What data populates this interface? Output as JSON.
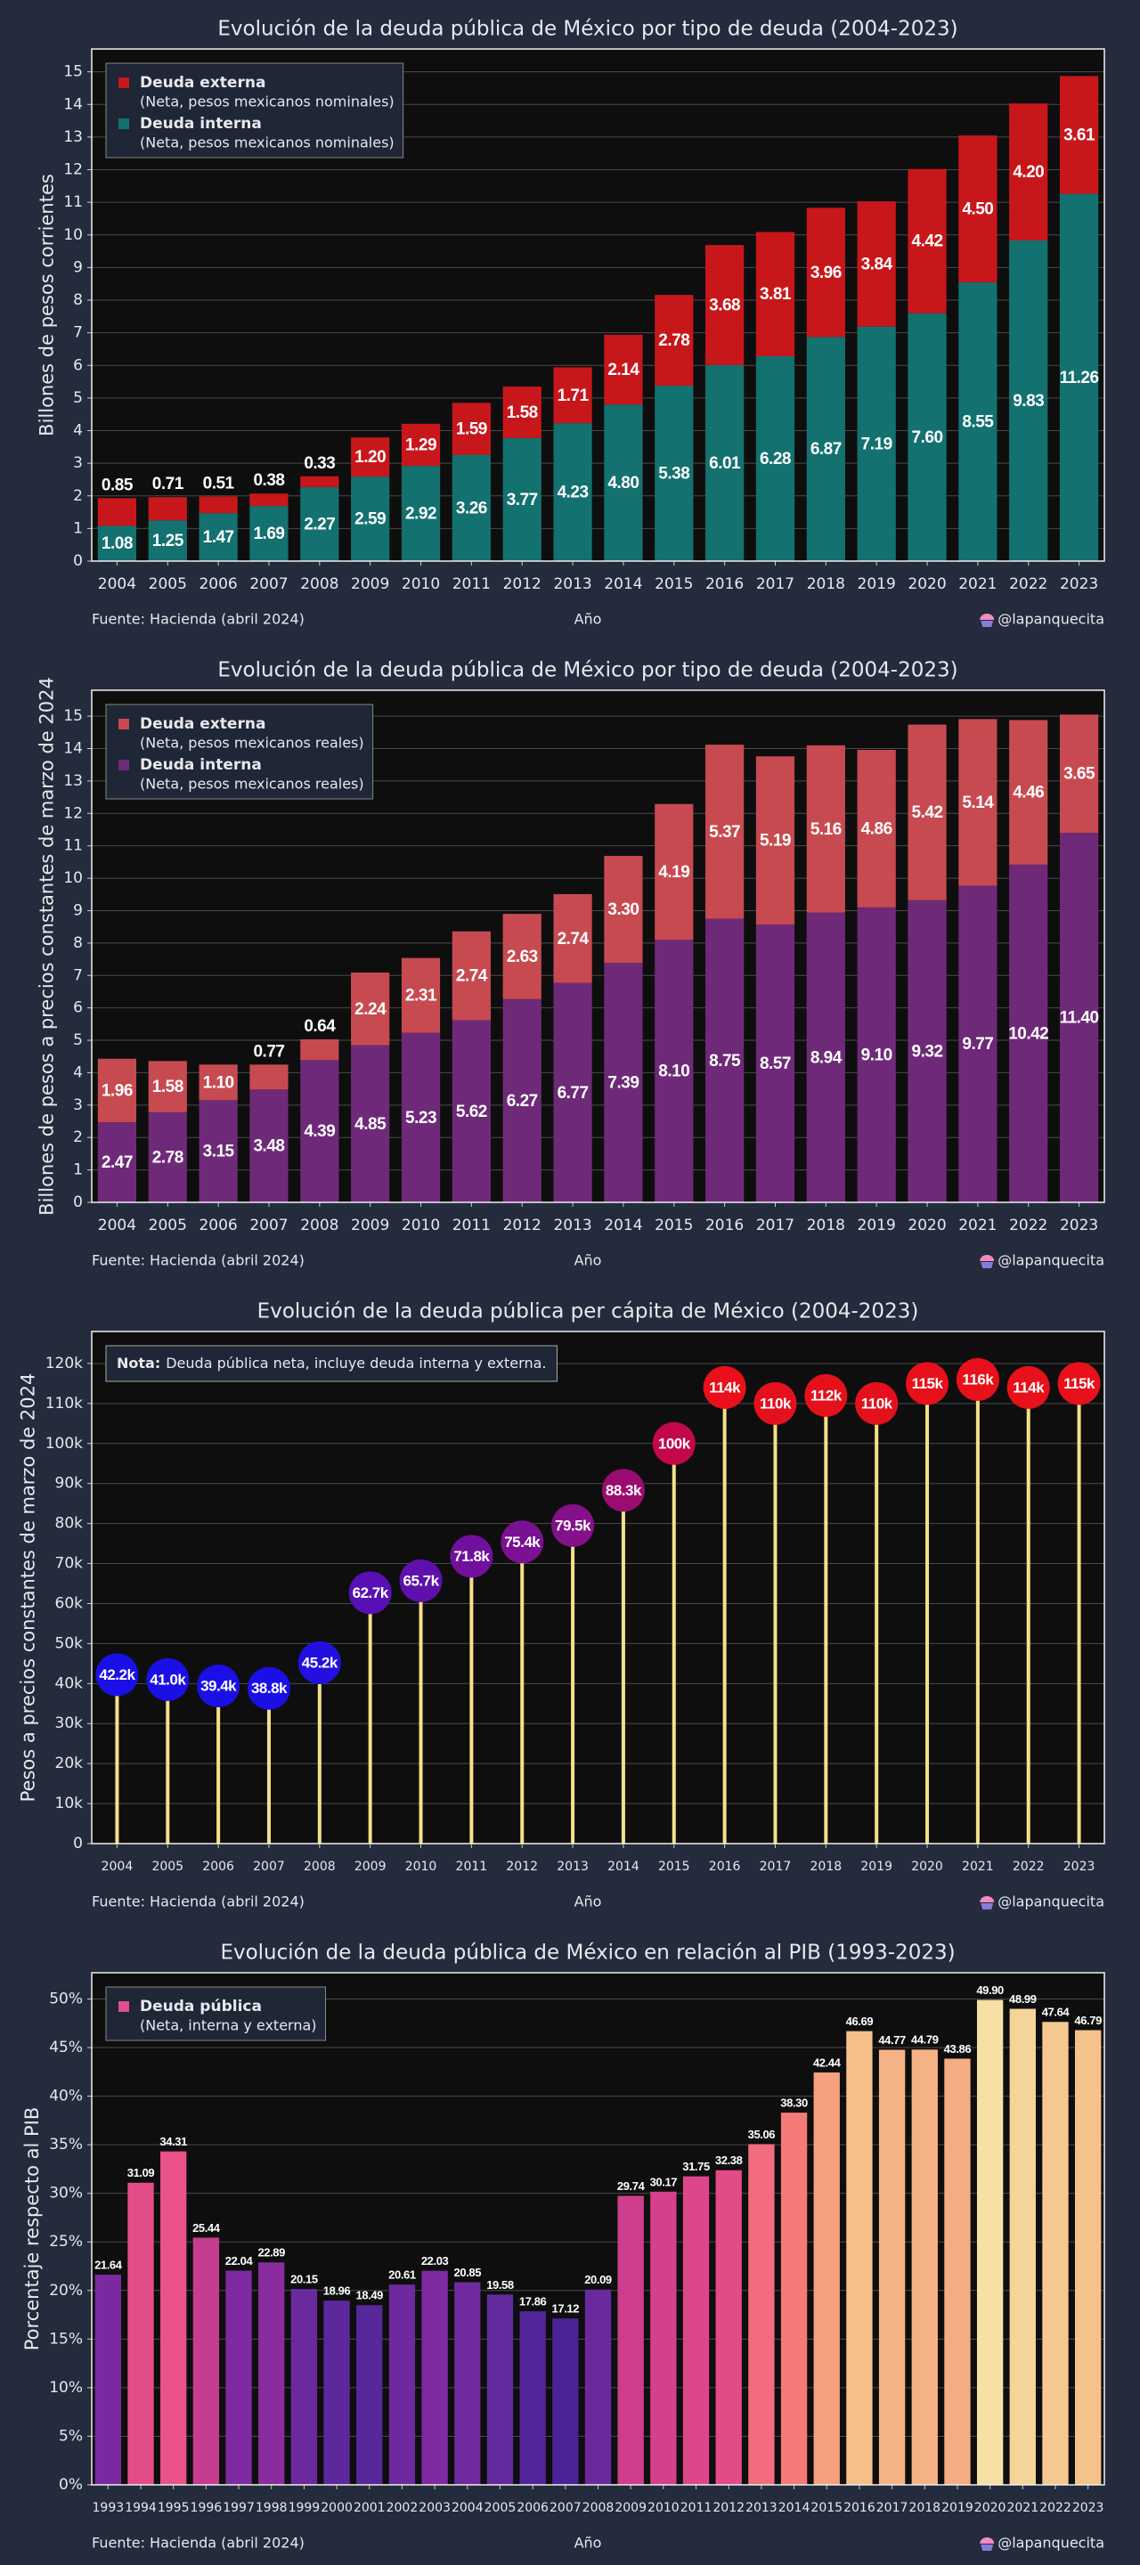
{
  "chart_data": [
    {
      "type": "bar",
      "stacked": true,
      "label_position": "inside",
      "title": "Evolución de la deuda pública de México por tipo de deuda (2004-2023)",
      "y_label": "Billones de pesos corrientes",
      "x_label": "Año",
      "source": "Fuente: Hacienda (abril 2024)",
      "credit": "@lapanquecita",
      "categories": [
        "2004",
        "2005",
        "2006",
        "2007",
        "2008",
        "2009",
        "2010",
        "2011",
        "2012",
        "2013",
        "2014",
        "2015",
        "2016",
        "2017",
        "2018",
        "2019",
        "2020",
        "2021",
        "2022",
        "2023"
      ],
      "ylim": [
        0,
        15.7
      ],
      "yticks": [
        0,
        1,
        2,
        3,
        4,
        5,
        6,
        7,
        8,
        9,
        10,
        11,
        12,
        13,
        14,
        15
      ],
      "grid": true,
      "legend": "top-left",
      "series": [
        {
          "name": "Deuda interna",
          "note": "(Neta, pesos mexicanos nominales)",
          "color": "#137170",
          "values": [
            1.08,
            1.25,
            1.47,
            1.69,
            2.27,
            2.59,
            2.92,
            3.26,
            3.77,
            4.23,
            4.8,
            5.38,
            6.01,
            6.28,
            6.87,
            7.19,
            7.6,
            8.55,
            9.83,
            11.26
          ],
          "value_labels": [
            "1.08",
            "1.25",
            "1.47",
            "1.69",
            "2.27",
            "2.59",
            "2.92",
            "3.26",
            "3.77",
            "4.23",
            "4.80",
            "5.38",
            "6.01",
            "6.28",
            "6.87",
            "7.19",
            "7.60",
            "8.55",
            "9.83",
            "11.26"
          ]
        },
        {
          "name": "Deuda externa",
          "note": "(Neta, pesos mexicanos nominales)",
          "color": "#c8171b",
          "values": [
            0.85,
            0.71,
            0.51,
            0.38,
            0.33,
            1.2,
            1.29,
            1.59,
            1.58,
            1.71,
            2.14,
            2.78,
            3.68,
            3.81,
            3.96,
            3.84,
            4.42,
            4.5,
            4.2,
            3.61
          ],
          "value_labels": [
            "0.85",
            "0.71",
            "0.51",
            "0.38",
            "0.33",
            "1.20",
            "1.29",
            "1.59",
            "1.58",
            "1.71",
            "2.14",
            "2.78",
            "3.68",
            "3.81",
            "3.96",
            "3.84",
            "4.42",
            "4.50",
            "4.20",
            "3.61"
          ]
        }
      ]
    },
    {
      "type": "bar",
      "stacked": true,
      "label_position": "inside",
      "title": "Evolución de la deuda pública de México por tipo de deuda (2004-2023)",
      "y_label": "Billones de pesos a precios constantes de marzo de 2024",
      "x_label": "Año",
      "source": "Fuente: Hacienda (abril 2024)",
      "credit": "@lapanquecita",
      "categories": [
        "2004",
        "2005",
        "2006",
        "2007",
        "2008",
        "2009",
        "2010",
        "2011",
        "2012",
        "2013",
        "2014",
        "2015",
        "2016",
        "2017",
        "2018",
        "2019",
        "2020",
        "2021",
        "2022",
        "2023"
      ],
      "ylim": [
        0,
        15.8
      ],
      "yticks": [
        0,
        1,
        2,
        3,
        4,
        5,
        6,
        7,
        8,
        9,
        10,
        11,
        12,
        13,
        14,
        15
      ],
      "grid": true,
      "legend": "top-left",
      "series": [
        {
          "name": "Deuda interna",
          "note": "(Neta, pesos mexicanos reales)",
          "color": "#6e2a78",
          "values": [
            2.47,
            2.78,
            3.15,
            3.48,
            4.39,
            4.85,
            5.23,
            5.62,
            6.27,
            6.77,
            7.39,
            8.1,
            8.75,
            8.57,
            8.94,
            9.1,
            9.32,
            9.77,
            10.42,
            11.4
          ],
          "value_labels": [
            "2.47",
            "2.78",
            "3.15",
            "3.48",
            "4.39",
            "4.85",
            "5.23",
            "5.62",
            "6.27",
            "6.77",
            "7.39",
            "8.10",
            "8.75",
            "8.57",
            "8.94",
            "9.10",
            "9.32",
            "9.77",
            "10.42",
            "11.40"
          ]
        },
        {
          "name": "Deuda externa",
          "note": "(Neta, pesos mexicanos reales)",
          "color": "#c74a50",
          "values": [
            1.96,
            1.58,
            1.1,
            0.77,
            0.64,
            2.24,
            2.31,
            2.74,
            2.63,
            2.74,
            3.3,
            4.19,
            5.37,
            5.19,
            5.16,
            4.86,
            5.42,
            5.14,
            4.46,
            3.65
          ],
          "value_labels": [
            "1.96",
            "1.58",
            "1.10",
            "0.77",
            "0.64",
            "2.24",
            "2.31",
            "2.74",
            "2.63",
            "2.74",
            "3.30",
            "4.19",
            "5.37",
            "5.19",
            "5.16",
            "4.86",
            "5.42",
            "5.14",
            "4.46",
            "3.65"
          ]
        }
      ]
    },
    {
      "type": "lollipop",
      "title": "Evolución de la deuda pública per cápita de México (2004-2023)",
      "y_label": "Pesos a precios constantes de marzo de 2024",
      "x_label": "Año",
      "source": "Fuente: Hacienda (abril 2024)",
      "credit": "@lapanquecita",
      "note": {
        "label": "Nota:",
        "text": "Deuda pública neta, incluye deuda interna y externa."
      },
      "categories": [
        "2004",
        "2005",
        "2006",
        "2007",
        "2008",
        "2009",
        "2010",
        "2011",
        "2012",
        "2013",
        "2014",
        "2015",
        "2016",
        "2017",
        "2018",
        "2019",
        "2020",
        "2021",
        "2022",
        "2023"
      ],
      "ylim": [
        0,
        128000
      ],
      "yticks": [
        0,
        {
          "value": 10000,
          "label": "10k"
        },
        {
          "value": 20000,
          "label": "20k"
        },
        {
          "value": 30000,
          "label": "30k"
        },
        {
          "value": 40000,
          "label": "40k"
        },
        {
          "value": 50000,
          "label": "50k"
        },
        {
          "value": 60000,
          "label": "60k"
        },
        {
          "value": 70000,
          "label": "70k"
        },
        {
          "value": 80000,
          "label": "80k"
        },
        {
          "value": 90000,
          "label": "90k"
        },
        {
          "value": 100000,
          "label": "100k"
        },
        {
          "value": 110000,
          "label": "110k"
        },
        {
          "value": 120000,
          "label": "120k"
        }
      ],
      "grid": true,
      "stem_color": "#f3e08a",
      "values": [
        42200,
        41000,
        39400,
        38800,
        45200,
        62700,
        65700,
        71800,
        75400,
        79500,
        88300,
        100000,
        114000,
        110000,
        112000,
        110000,
        115000,
        116000,
        114000,
        115000
      ],
      "value_labels": [
        "42.2k",
        "41.0k",
        "39.4k",
        "38.8k",
        "45.2k",
        "62.7k",
        "65.7k",
        "71.8k",
        "75.4k",
        "79.5k",
        "88.3k",
        "100k",
        "114k",
        "110k",
        "112k",
        "110k",
        "115k",
        "116k",
        "114k",
        "115k"
      ],
      "colors": [
        "#1a10e6",
        "#1a10e6",
        "#1a10e6",
        "#1a10e6",
        "#2210e0",
        "#5810b4",
        "#5f10ac",
        "#70109c",
        "#7a1092",
        "#84108a",
        "#9a0c70",
        "#c2084a",
        "#e8101a",
        "#e5101d",
        "#e6101b",
        "#e5101d",
        "#e8101a",
        "#e8101a",
        "#e8101a",
        "#e8101a"
      ]
    },
    {
      "type": "bar",
      "stacked": false,
      "label_position": "outside",
      "title": "Evolución de la deuda pública de México en relación al PIB (1993-2023)",
      "y_label": "Porcentaje respecto al PIB",
      "x_label": "Año",
      "source": "Fuente: Hacienda (abril 2024)",
      "credit": "@lapanquecita",
      "categories": [
        "1993",
        "1994",
        "1995",
        "1996",
        "1997",
        "1998",
        "1999",
        "2000",
        "2001",
        "2002",
        "2003",
        "2004",
        "2005",
        "2006",
        "2007",
        "2008",
        "2009",
        "2010",
        "2011",
        "2012",
        "2013",
        "2014",
        "2015",
        "2016",
        "2017",
        "2018",
        "2019",
        "2020",
        "2021",
        "2022",
        "2023"
      ],
      "ylim": [
        0,
        52.7
      ],
      "yticks": [
        {
          "value": 0,
          "label": "0%"
        },
        {
          "value": 5,
          "label": "5%"
        },
        {
          "value": 10,
          "label": "10%"
        },
        {
          "value": 15,
          "label": "15%"
        },
        {
          "value": 20,
          "label": "20%"
        },
        {
          "value": 25,
          "label": "25%"
        },
        {
          "value": 30,
          "label": "30%"
        },
        {
          "value": 35,
          "label": "35%"
        },
        {
          "value": 40,
          "label": "40%"
        },
        {
          "value": 45,
          "label": "45%"
        },
        {
          "value": 50,
          "label": "50%"
        }
      ],
      "grid": true,
      "legend": "top-left",
      "series": [
        {
          "name": "Deuda pública",
          "note": "(Neta, interna y externa)",
          "color": "#e0508a",
          "values": [
            21.64,
            31.09,
            34.31,
            25.44,
            22.04,
            22.89,
            20.15,
            18.96,
            18.49,
            20.61,
            22.03,
            20.85,
            19.58,
            17.86,
            17.12,
            20.09,
            29.74,
            30.17,
            31.75,
            32.38,
            35.06,
            38.3,
            42.44,
            46.69,
            44.77,
            44.79,
            43.86,
            49.9,
            48.99,
            47.64,
            46.79
          ],
          "value_labels": [
            "21.64",
            "31.09",
            "34.31",
            "25.44",
            "22.04",
            "22.89",
            "20.15",
            "18.96",
            "18.49",
            "20.61",
            "22.03",
            "20.85",
            "19.58",
            "17.86",
            "17.12",
            "20.09",
            "29.74",
            "30.17",
            "31.75",
            "32.38",
            "35.06",
            "38.30",
            "42.44",
            "46.69",
            "44.77",
            "44.79",
            "43.86",
            "49.90",
            "48.99",
            "47.64",
            "46.79"
          ],
          "colors": [
            "#7a2aa0",
            "#e44c88",
            "#ea528a",
            "#c63c8e",
            "#7e2aa0",
            "#8a2c9e",
            "#6a2a9e",
            "#5c289c",
            "#56289a",
            "#6c2a9e",
            "#7e2aa0",
            "#6e2a9e",
            "#622a9c",
            "#52269a",
            "#4a2496",
            "#6a2a9e",
            "#ce3e8c",
            "#d4408c",
            "#de468a",
            "#e24a88",
            "#f06c7e",
            "#f47a78",
            "#f5a07e",
            "#f5c08a",
            "#f5b284",
            "#f5b284",
            "#f5ac82",
            "#f6e0a4",
            "#f5d49a",
            "#f5c890",
            "#f5c28c"
          ]
        }
      ]
    }
  ]
}
